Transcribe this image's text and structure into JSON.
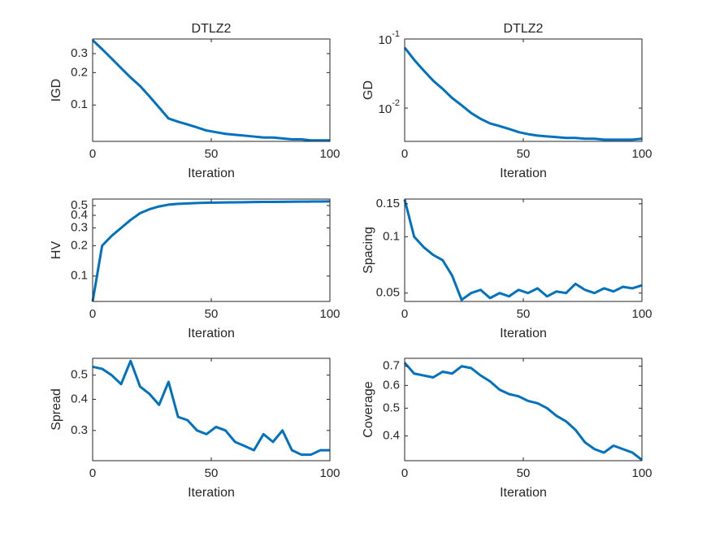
{
  "chart_data": [
    {
      "type": "line",
      "title": "DTLZ2",
      "xlabel": "Iteration",
      "ylabel": "IGD",
      "ylog": true,
      "grid": false,
      "x": [
        0,
        4,
        8,
        12,
        16,
        20,
        24,
        28,
        32,
        36,
        40,
        44,
        48,
        52,
        56,
        60,
        64,
        68,
        72,
        76,
        80,
        84,
        88,
        92,
        96,
        100
      ],
      "series": [
        {
          "name": "IGD",
          "color": "#0072bd",
          "values": [
            0.4,
            0.33,
            0.27,
            0.22,
            0.18,
            0.15,
            0.12,
            0.095,
            0.075,
            0.07,
            0.066,
            0.062,
            0.058,
            0.056,
            0.054,
            0.053,
            0.052,
            0.051,
            0.05,
            0.05,
            0.049,
            0.048,
            0.048,
            0.047,
            0.047,
            0.047
          ]
        }
      ],
      "xlim": [
        0,
        100
      ],
      "xticks": [
        0,
        50,
        100
      ],
      "ylim": [
        0.046,
        0.41
      ],
      "yticks": [
        0.1,
        0.2,
        0.3
      ]
    },
    {
      "type": "line",
      "title": "DTLZ2",
      "xlabel": "Iteration",
      "ylabel": "GD",
      "ylog": true,
      "grid": false,
      "x": [
        0,
        4,
        8,
        12,
        16,
        20,
        24,
        28,
        32,
        36,
        40,
        44,
        48,
        52,
        56,
        60,
        64,
        68,
        72,
        76,
        80,
        84,
        88,
        92,
        96,
        100
      ],
      "series": [
        {
          "name": "GD",
          "color": "#0072bd",
          "values": [
            0.075,
            0.05,
            0.035,
            0.025,
            0.019,
            0.014,
            0.011,
            0.0085,
            0.007,
            0.006,
            0.0055,
            0.005,
            0.0045,
            0.0042,
            0.004,
            0.0039,
            0.0038,
            0.0037,
            0.0037,
            0.0036,
            0.0036,
            0.0035,
            0.0035,
            0.0035,
            0.0035,
            0.0036
          ]
        }
      ],
      "xlim": [
        0,
        100
      ],
      "xticks": [
        0,
        50,
        100
      ],
      "ylim": [
        0.0033,
        0.1
      ],
      "yticks": [
        {
          "value": 0.01,
          "label": "10",
          "exponent": "-2"
        },
        {
          "value": 0.1,
          "label": "10",
          "exponent": "-1"
        }
      ]
    },
    {
      "type": "line",
      "xlabel": "Iteration",
      "ylabel": "HV",
      "ylog": true,
      "grid": false,
      "x": [
        0,
        4,
        8,
        12,
        16,
        20,
        24,
        28,
        32,
        36,
        40,
        44,
        48,
        52,
        56,
        60,
        64,
        68,
        72,
        76,
        80,
        84,
        88,
        92,
        96,
        100
      ],
      "series": [
        {
          "name": "HV",
          "color": "#0072bd",
          "values": [
            0.056,
            0.2,
            0.25,
            0.3,
            0.36,
            0.42,
            0.46,
            0.49,
            0.51,
            0.52,
            0.525,
            0.53,
            0.533,
            0.535,
            0.537,
            0.539,
            0.54,
            0.542,
            0.543,
            0.544,
            0.545,
            0.546,
            0.547,
            0.548,
            0.549,
            0.55
          ]
        }
      ],
      "xlim": [
        0,
        100
      ],
      "xticks": [
        0,
        50,
        100
      ],
      "ylim": [
        0.056,
        0.58
      ],
      "yticks": [
        0.1,
        0.2,
        0.3,
        0.4,
        0.5
      ]
    },
    {
      "type": "line",
      "xlabel": "Iteration",
      "ylabel": "Spacing",
      "ylog": true,
      "grid": false,
      "x": [
        0,
        4,
        8,
        12,
        16,
        20,
        24,
        28,
        32,
        36,
        40,
        44,
        48,
        52,
        56,
        60,
        64,
        68,
        72,
        76,
        80,
        84,
        88,
        92,
        96,
        100
      ],
      "series": [
        {
          "name": "Spacing",
          "color": "#0072bd",
          "values": [
            0.158,
            0.1,
            0.088,
            0.08,
            0.075,
            0.062,
            0.046,
            0.05,
            0.052,
            0.047,
            0.05,
            0.048,
            0.052,
            0.05,
            0.053,
            0.048,
            0.051,
            0.05,
            0.056,
            0.052,
            0.05,
            0.053,
            0.051,
            0.054,
            0.053,
            0.055
          ]
        }
      ],
      "xlim": [
        0,
        100
      ],
      "xticks": [
        0,
        50,
        100
      ],
      "ylim": [
        0.0451,
        0.159
      ],
      "yticks": [
        0.05,
        0.1,
        0.15
      ]
    },
    {
      "type": "line",
      "xlabel": "Iteration",
      "ylabel": "Spread",
      "ylog": true,
      "grid": false,
      "x": [
        0,
        4,
        8,
        12,
        16,
        20,
        24,
        28,
        32,
        36,
        40,
        44,
        48,
        52,
        56,
        60,
        64,
        68,
        72,
        76,
        80,
        84,
        88,
        92,
        96,
        100
      ],
      "series": [
        {
          "name": "Spread",
          "color": "#0072bd",
          "values": [
            0.54,
            0.53,
            0.5,
            0.46,
            0.57,
            0.45,
            0.42,
            0.38,
            0.47,
            0.34,
            0.33,
            0.3,
            0.29,
            0.31,
            0.3,
            0.27,
            0.26,
            0.25,
            0.29,
            0.27,
            0.3,
            0.25,
            0.24,
            0.24,
            0.25,
            0.25
          ]
        }
      ],
      "xlim": [
        0,
        100
      ],
      "xticks": [
        0,
        50,
        100
      ],
      "ylim": [
        0.227,
        0.584
      ],
      "yticks": [
        0.3,
        0.4,
        0.5
      ]
    },
    {
      "type": "line",
      "xlabel": "Iteration",
      "ylabel": "Coverage",
      "ylog": true,
      "grid": false,
      "x": [
        0,
        4,
        8,
        12,
        16,
        20,
        24,
        28,
        32,
        36,
        40,
        44,
        48,
        52,
        56,
        60,
        64,
        68,
        72,
        76,
        80,
        84,
        88,
        92,
        96,
        100
      ],
      "series": [
        {
          "name": "Coverage",
          "color": "#0072bd",
          "values": [
            0.72,
            0.66,
            0.65,
            0.64,
            0.67,
            0.66,
            0.7,
            0.69,
            0.65,
            0.62,
            0.58,
            0.56,
            0.55,
            0.53,
            0.52,
            0.5,
            0.47,
            0.45,
            0.42,
            0.38,
            0.36,
            0.35,
            0.37,
            0.36,
            0.35,
            0.33
          ]
        }
      ],
      "xlim": [
        0,
        100
      ],
      "xticks": [
        0,
        50,
        100
      ],
      "ylim": [
        0.328,
        0.746
      ],
      "yticks": [
        0.4,
        0.5,
        0.6,
        0.7
      ]
    }
  ]
}
